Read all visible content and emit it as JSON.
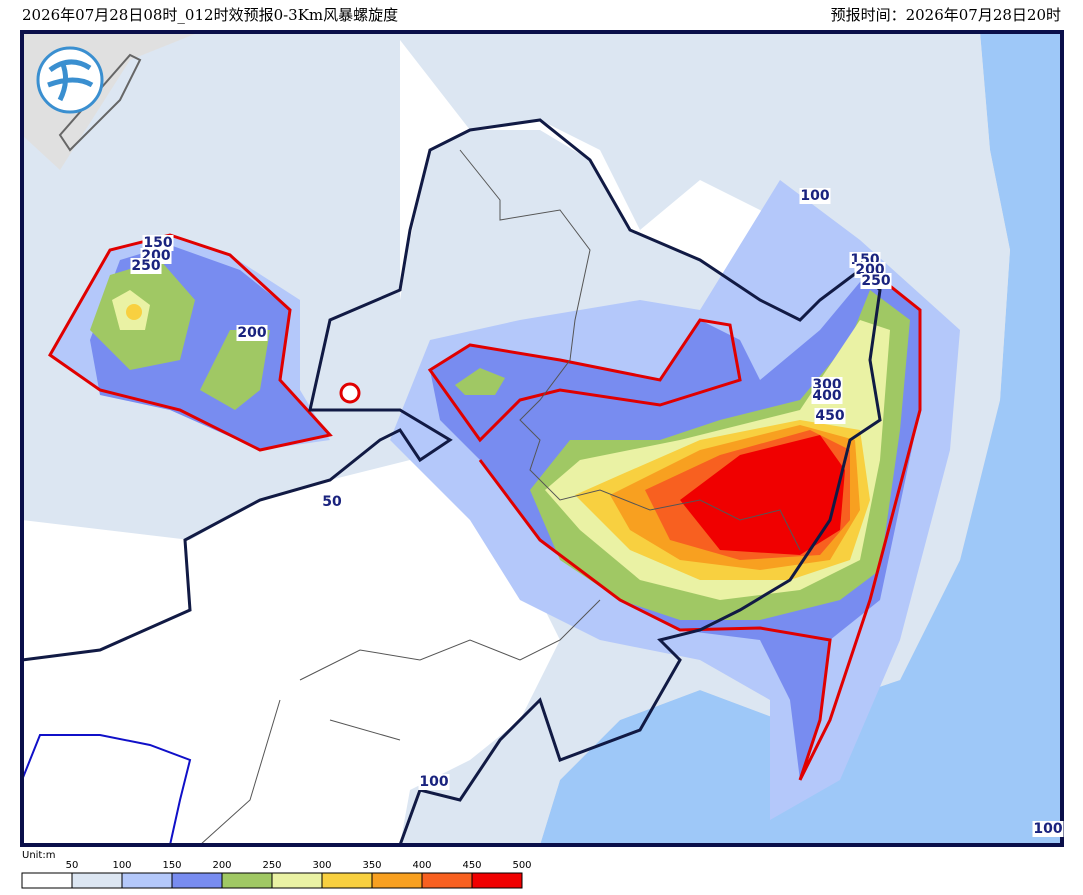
{
  "header": {
    "title": "2026年07月28日08时_012时效预报0-3Km风暴螺旋度",
    "forecast_time": "预报时间：2026年07月28日20时"
  },
  "map": {
    "contour_labels": [
      "150",
      "200",
      "250",
      "200",
      "50",
      "100",
      "150",
      "200",
      "250",
      "300",
      "400",
      "450",
      "100",
      "100"
    ]
  },
  "legend": {
    "unit": "Unit:m",
    "levels": [
      50,
      100,
      150,
      200,
      250,
      300,
      350,
      400,
      450,
      500
    ],
    "colors": [
      "#ffffff",
      "#dce6f2",
      "#b4c8fa",
      "#788cf0",
      "#a0c864",
      "#eaf2a4",
      "#f8d040",
      "#f8a020",
      "#f86020",
      "#f00000"
    ]
  }
}
